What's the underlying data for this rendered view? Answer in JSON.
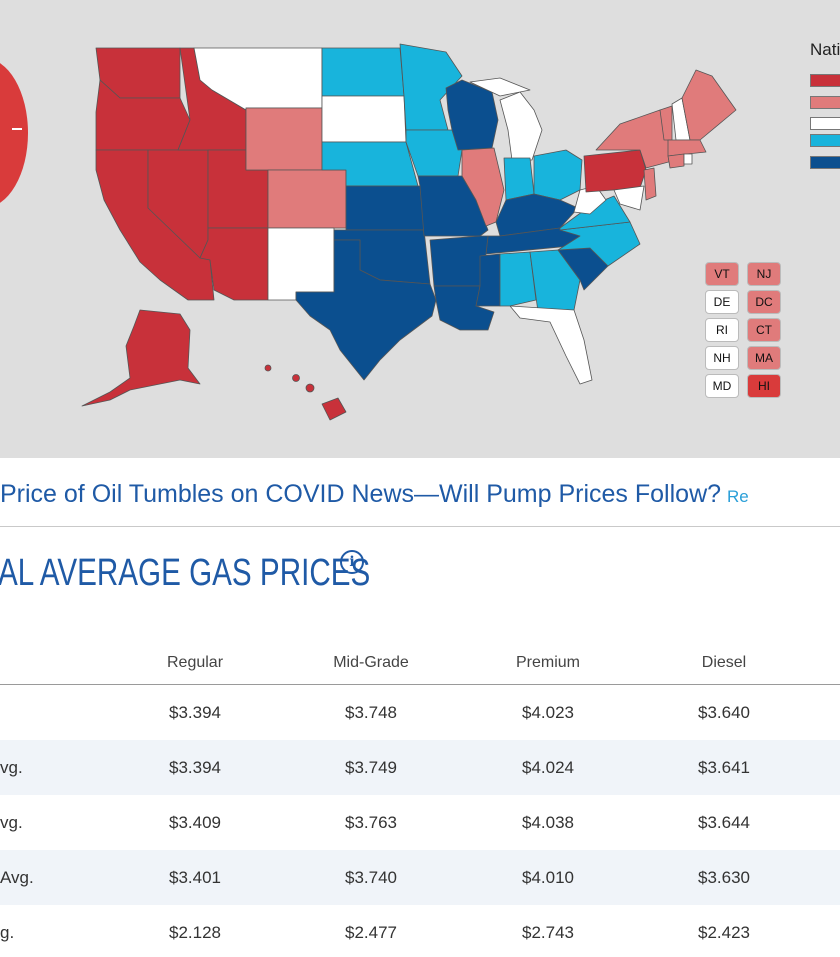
{
  "legend": {
    "title": "Nati",
    "colors": [
      "#c8313a",
      "#e07b7b",
      "#ffffff",
      "#18b4dc",
      "#0b4f8f"
    ]
  },
  "map": {
    "colors": {
      "dark_red": "#c8313a",
      "light_red": "#e07b7b",
      "white": "#ffffff",
      "light_blue": "#18b4dc",
      "dark_blue": "#0b4f8f"
    },
    "small_states": [
      {
        "code": "VT",
        "color": "#e07b7b"
      },
      {
        "code": "NJ",
        "color": "#e07b7b"
      },
      {
        "code": "DE",
        "color": "#ffffff"
      },
      {
        "code": "DC",
        "color": "#e07b7b"
      },
      {
        "code": "RI",
        "color": "#ffffff"
      },
      {
        "code": "CT",
        "color": "#e07b7b"
      },
      {
        "code": "NH",
        "color": "#ffffff"
      },
      {
        "code": "MA",
        "color": "#e07b7b"
      },
      {
        "code": "MD",
        "color": "#ffffff"
      },
      {
        "code": "HI",
        "color": "#d93b3b"
      }
    ]
  },
  "headline": {
    "text": "Price of Oil Tumbles on COVID News—Will Pump Prices Follow?",
    "read_more": "Re"
  },
  "section": {
    "title": "AL AVERAGE GAS PRICES",
    "info_icon": "info-icon"
  },
  "table": {
    "columns": [
      "Regular",
      "Mid-Grade",
      "Premium",
      "Diesel"
    ],
    "rows": [
      {
        "label": "",
        "values": [
          "$3.394",
          "$3.748",
          "$4.023",
          "$3.640"
        ]
      },
      {
        "label": "vg.",
        "values": [
          "$3.394",
          "$3.749",
          "$4.024",
          "$3.641"
        ]
      },
      {
        "label": "vg.",
        "values": [
          "$3.409",
          "$3.763",
          "$4.038",
          "$3.644"
        ]
      },
      {
        "label": "Avg.",
        "values": [
          "$3.401",
          "$3.740",
          "$4.010",
          "$3.630"
        ]
      },
      {
        "label": "g.",
        "values": [
          "$2.128",
          "$2.477",
          "$2.743",
          "$2.423"
        ]
      }
    ]
  }
}
